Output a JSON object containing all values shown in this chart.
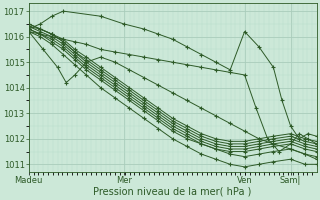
{
  "xlabel": "Pression niveau de la mer( hPa )",
  "bg_color": "#cce8d8",
  "grid_major_color": "#aaccbb",
  "grid_minor_color": "#b8dccb",
  "line_color": "#2d5a27",
  "ylim": [
    1010.7,
    1017.3
  ],
  "yticks": [
    1011,
    1012,
    1013,
    1014,
    1015,
    1016,
    1017
  ],
  "xtick_labels": [
    "Madeu",
    "Mer",
    "Ven",
    "Sam|"
  ],
  "xtick_pos": [
    0.0,
    0.33,
    0.75,
    0.91
  ],
  "series": [
    {
      "x": [
        0,
        0.04,
        0.08,
        0.12,
        0.16,
        0.2,
        0.25,
        0.3,
        0.35,
        0.4,
        0.45,
        0.5,
        0.55,
        0.6,
        0.65,
        0.7,
        0.75,
        0.8,
        0.85,
        0.91,
        0.96,
        1.0
      ],
      "y": [
        1016.2,
        1016.0,
        1015.7,
        1015.3,
        1014.9,
        1014.5,
        1014.0,
        1013.6,
        1013.2,
        1012.8,
        1012.4,
        1012.0,
        1011.7,
        1011.4,
        1011.2,
        1011.0,
        1010.9,
        1011.0,
        1011.1,
        1011.2,
        1011.0,
        1011.0
      ]
    },
    {
      "x": [
        0,
        0.04,
        0.08,
        0.12,
        0.16,
        0.2,
        0.25,
        0.3,
        0.35,
        0.4,
        0.45,
        0.5,
        0.55,
        0.6,
        0.65,
        0.7,
        0.75,
        0.8,
        0.85,
        0.91,
        0.96,
        1.0
      ],
      "y": [
        1016.3,
        1016.1,
        1015.9,
        1015.6,
        1015.2,
        1014.8,
        1014.4,
        1014.0,
        1013.6,
        1013.2,
        1012.8,
        1012.4,
        1012.1,
        1011.8,
        1011.6,
        1011.4,
        1011.3,
        1011.4,
        1011.5,
        1011.6,
        1011.4,
        1011.3
      ]
    },
    {
      "x": [
        0,
        0.04,
        0.08,
        0.12,
        0.16,
        0.2,
        0.25,
        0.3,
        0.35,
        0.4,
        0.45,
        0.5,
        0.55,
        0.6,
        0.65,
        0.7,
        0.75,
        0.8,
        0.85,
        0.91,
        0.96,
        1.0
      ],
      "y": [
        1016.3,
        1016.1,
        1015.8,
        1015.5,
        1015.1,
        1014.7,
        1014.3,
        1013.9,
        1013.5,
        1013.1,
        1012.7,
        1012.3,
        1012.0,
        1011.8,
        1011.6,
        1011.5,
        1011.5,
        1011.6,
        1011.7,
        1011.8,
        1011.6,
        1011.5
      ]
    },
    {
      "x": [
        0,
        0.04,
        0.08,
        0.12,
        0.16,
        0.2,
        0.25,
        0.3,
        0.35,
        0.4,
        0.45,
        0.5,
        0.55,
        0.6,
        0.65,
        0.7,
        0.75,
        0.8,
        0.85,
        0.91,
        0.96,
        1.0
      ],
      "y": [
        1016.4,
        1016.2,
        1016.0,
        1015.7,
        1015.3,
        1014.9,
        1014.5,
        1014.1,
        1013.7,
        1013.3,
        1012.9,
        1012.5,
        1012.2,
        1011.9,
        1011.7,
        1011.6,
        1011.6,
        1011.7,
        1011.8,
        1011.9,
        1011.7,
        1011.6
      ]
    },
    {
      "x": [
        0,
        0.04,
        0.08,
        0.12,
        0.16,
        0.2,
        0.25,
        0.3,
        0.35,
        0.4,
        0.45,
        0.5,
        0.55,
        0.6,
        0.65,
        0.7,
        0.75,
        0.8,
        0.85,
        0.91,
        0.96,
        1.0
      ],
      "y": [
        1016.4,
        1016.3,
        1016.1,
        1015.8,
        1015.4,
        1015.0,
        1014.6,
        1014.2,
        1013.8,
        1013.4,
        1013.0,
        1012.6,
        1012.3,
        1012.0,
        1011.8,
        1011.7,
        1011.7,
        1011.8,
        1011.9,
        1012.0,
        1011.8,
        1011.7
      ]
    },
    {
      "x": [
        0,
        0.04,
        0.08,
        0.12,
        0.16,
        0.2,
        0.25,
        0.3,
        0.35,
        0.4,
        0.45,
        0.5,
        0.55,
        0.6,
        0.65,
        0.7,
        0.75,
        0.8,
        0.85,
        0.91,
        0.96,
        1.0
      ],
      "y": [
        1016.5,
        1016.3,
        1016.1,
        1015.8,
        1015.4,
        1015.1,
        1014.7,
        1014.3,
        1013.9,
        1013.5,
        1013.1,
        1012.7,
        1012.4,
        1012.1,
        1011.9,
        1011.8,
        1011.8,
        1011.9,
        1012.0,
        1012.1,
        1011.9,
        1011.8
      ]
    },
    {
      "x": [
        0,
        0.04,
        0.08,
        0.12,
        0.16,
        0.2,
        0.25,
        0.3,
        0.35,
        0.4,
        0.45,
        0.5,
        0.55,
        0.6,
        0.65,
        0.7,
        0.75,
        0.8,
        0.85,
        0.91,
        0.96,
        1.0
      ],
      "y": [
        1016.5,
        1016.3,
        1016.1,
        1015.9,
        1015.5,
        1015.2,
        1014.8,
        1014.4,
        1014.0,
        1013.6,
        1013.2,
        1012.8,
        1012.5,
        1012.2,
        1012.0,
        1011.9,
        1011.9,
        1012.0,
        1012.1,
        1012.2,
        1012.0,
        1011.9
      ]
    },
    {
      "x": [
        0,
        0.04,
        0.08,
        0.12,
        0.25,
        0.33,
        0.4,
        0.45,
        0.5,
        0.55,
        0.6,
        0.65,
        0.7,
        0.75,
        0.8,
        0.85,
        0.88,
        0.91,
        0.94,
        0.97,
        1.0
      ],
      "y": [
        1016.3,
        1016.5,
        1016.8,
        1017.0,
        1016.8,
        1016.5,
        1016.3,
        1016.1,
        1015.9,
        1015.6,
        1015.3,
        1015.0,
        1014.7,
        1016.2,
        1015.6,
        1014.8,
        1013.5,
        1012.5,
        1012.0,
        1012.2,
        1012.1
      ]
    },
    {
      "x": [
        0,
        0.05,
        0.1,
        0.13,
        0.16,
        0.2,
        0.25,
        0.3,
        0.35,
        0.4,
        0.45,
        0.5,
        0.55,
        0.6,
        0.65,
        0.7,
        0.75,
        0.8,
        0.85,
        0.91,
        0.96,
        1.0
      ],
      "y": [
        1016.2,
        1015.5,
        1014.8,
        1014.2,
        1014.5,
        1015.0,
        1015.2,
        1015.0,
        1014.7,
        1014.4,
        1014.1,
        1013.8,
        1013.5,
        1013.2,
        1012.9,
        1012.6,
        1012.3,
        1012.0,
        1011.8,
        1011.6,
        1011.4,
        1011.2
      ]
    },
    {
      "x": [
        0,
        0.04,
        0.08,
        0.12,
        0.16,
        0.2,
        0.25,
        0.3,
        0.35,
        0.4,
        0.45,
        0.5,
        0.55,
        0.6,
        0.65,
        0.7,
        0.75,
        0.79,
        0.83,
        0.87,
        0.91,
        0.94,
        0.97,
        1.0
      ],
      "y": [
        1016.2,
        1016.1,
        1016.0,
        1015.9,
        1015.8,
        1015.7,
        1015.5,
        1015.4,
        1015.3,
        1015.2,
        1015.1,
        1015.0,
        1014.9,
        1014.8,
        1014.7,
        1014.6,
        1014.5,
        1013.2,
        1012.0,
        1011.5,
        1011.8,
        1012.2,
        1012.0,
        1011.8
      ]
    }
  ]
}
